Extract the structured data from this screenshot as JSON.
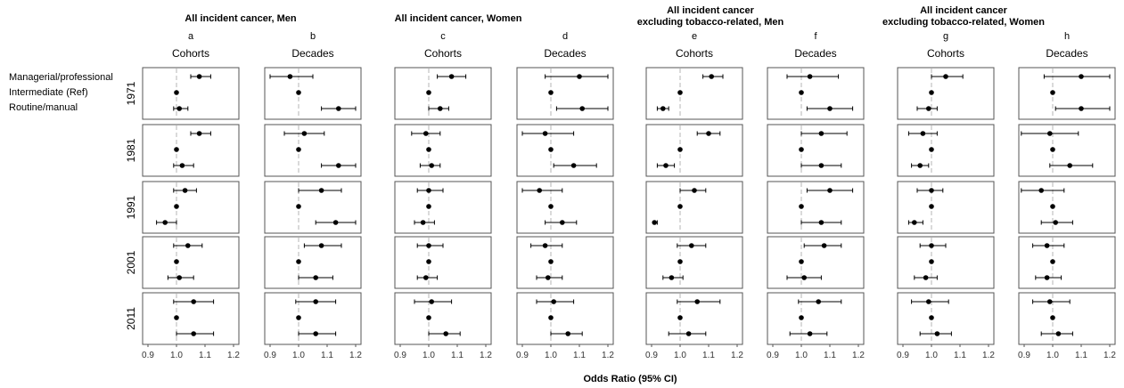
{
  "chart_data": {
    "type": "forest",
    "xlabel": "Odds Ratio (95% CI)",
    "xlim": [
      0.9,
      1.2
    ],
    "xticks": [
      "0.9",
      "1.0",
      "1.1",
      "1.2"
    ],
    "reference_line": 1.0,
    "rows": [
      "1971",
      "1981",
      "1991",
      "2001",
      "2011"
    ],
    "categories": [
      "Managerial/professional",
      "Intermediate (Ref)",
      "Routine/manual"
    ],
    "groups": [
      {
        "title_lines": [
          "All incident cancer, Men"
        ]
      },
      {
        "title_lines": [
          "All incident cancer, Women"
        ]
      },
      {
        "title_lines": [
          "All incident cancer",
          "excluding tobacco-related, Men"
        ]
      },
      {
        "title_lines": [
          "All incident cancer",
          "excluding tobacco-related, Women"
        ]
      }
    ],
    "panels": [
      {
        "letter": "a",
        "subtitle": "Cohorts",
        "data": [
          [
            [
              1.08,
              1.05,
              1.12
            ],
            [
              1.0,
              1.0,
              1.0
            ],
            [
              1.01,
              0.99,
              1.04
            ]
          ],
          [
            [
              1.08,
              1.05,
              1.12
            ],
            [
              1.0,
              1.0,
              1.0
            ],
            [
              1.02,
              0.99,
              1.06
            ]
          ],
          [
            [
              1.03,
              0.99,
              1.07
            ],
            [
              1.0,
              1.0,
              1.0
            ],
            [
              0.96,
              0.93,
              1.0
            ]
          ],
          [
            [
              1.04,
              0.99,
              1.09
            ],
            [
              1.0,
              1.0,
              1.0
            ],
            [
              1.01,
              0.97,
              1.06
            ]
          ],
          [
            [
              1.06,
              0.99,
              1.13
            ],
            [
              1.0,
              1.0,
              1.0
            ],
            [
              1.06,
              1.0,
              1.13
            ]
          ]
        ]
      },
      {
        "letter": "b",
        "subtitle": "Decades",
        "data": [
          [
            [
              0.97,
              0.9,
              1.05
            ],
            [
              1.0,
              1.0,
              1.0
            ],
            [
              1.14,
              1.08,
              1.2
            ]
          ],
          [
            [
              1.02,
              0.95,
              1.09
            ],
            [
              1.0,
              1.0,
              1.0
            ],
            [
              1.14,
              1.08,
              1.2
            ]
          ],
          [
            [
              1.08,
              1.0,
              1.15
            ],
            [
              1.0,
              1.0,
              1.0
            ],
            [
              1.13,
              1.06,
              1.2
            ]
          ],
          [
            [
              1.08,
              1.02,
              1.15
            ],
            [
              1.0,
              1.0,
              1.0
            ],
            [
              1.06,
              1.0,
              1.12
            ]
          ],
          [
            [
              1.06,
              0.99,
              1.13
            ],
            [
              1.0,
              1.0,
              1.0
            ],
            [
              1.06,
              1.0,
              1.13
            ]
          ]
        ]
      },
      {
        "letter": "c",
        "subtitle": "Cohorts",
        "data": [
          [
            [
              1.08,
              1.03,
              1.13
            ],
            [
              1.0,
              1.0,
              1.0
            ],
            [
              1.04,
              1.0,
              1.07
            ]
          ],
          [
            [
              0.99,
              0.94,
              1.04
            ],
            [
              1.0,
              1.0,
              1.0
            ],
            [
              1.01,
              0.97,
              1.04
            ]
          ],
          [
            [
              1.0,
              0.96,
              1.05
            ],
            [
              1.0,
              1.0,
              1.0
            ],
            [
              0.98,
              0.95,
              1.02
            ]
          ],
          [
            [
              1.0,
              0.96,
              1.05
            ],
            [
              1.0,
              1.0,
              1.0
            ],
            [
              0.99,
              0.96,
              1.03
            ]
          ],
          [
            [
              1.01,
              0.95,
              1.08
            ],
            [
              1.0,
              1.0,
              1.0
            ],
            [
              1.06,
              1.0,
              1.11
            ]
          ]
        ]
      },
      {
        "letter": "d",
        "subtitle": "Decades",
        "data": [
          [
            [
              1.1,
              0.98,
              1.2
            ],
            [
              1.0,
              1.0,
              1.0
            ],
            [
              1.11,
              1.02,
              1.2
            ]
          ],
          [
            [
              0.98,
              0.9,
              1.08
            ],
            [
              1.0,
              1.0,
              1.0
            ],
            [
              1.08,
              1.01,
              1.16
            ]
          ],
          [
            [
              0.96,
              0.9,
              1.04
            ],
            [
              1.0,
              1.0,
              1.0
            ],
            [
              1.04,
              0.98,
              1.09
            ]
          ],
          [
            [
              0.98,
              0.93,
              1.04
            ],
            [
              1.0,
              1.0,
              1.0
            ],
            [
              0.99,
              0.95,
              1.04
            ]
          ],
          [
            [
              1.01,
              0.95,
              1.08
            ],
            [
              1.0,
              1.0,
              1.0
            ],
            [
              1.06,
              1.0,
              1.11
            ]
          ]
        ]
      },
      {
        "letter": "e",
        "subtitle": "Cohorts",
        "data": [
          [
            [
              1.11,
              1.08,
              1.15
            ],
            [
              1.0,
              1.0,
              1.0
            ],
            [
              0.94,
              0.92,
              0.96
            ]
          ],
          [
            [
              1.1,
              1.06,
              1.14
            ],
            [
              1.0,
              1.0,
              1.0
            ],
            [
              0.95,
              0.92,
              0.98
            ]
          ],
          [
            [
              1.05,
              1.0,
              1.09
            ],
            [
              1.0,
              1.0,
              1.0
            ],
            [
              0.91,
              0.91,
              0.92
            ]
          ],
          [
            [
              1.04,
              0.99,
              1.09
            ],
            [
              1.0,
              1.0,
              1.0
            ],
            [
              0.97,
              0.94,
              1.01
            ]
          ],
          [
            [
              1.06,
              0.99,
              1.14
            ],
            [
              1.0,
              1.0,
              1.0
            ],
            [
              1.03,
              0.96,
              1.09
            ]
          ]
        ]
      },
      {
        "letter": "f",
        "subtitle": "Decades",
        "data": [
          [
            [
              1.03,
              0.95,
              1.13
            ],
            [
              1.0,
              1.0,
              1.0
            ],
            [
              1.1,
              1.02,
              1.18
            ]
          ],
          [
            [
              1.07,
              1.0,
              1.16
            ],
            [
              1.0,
              1.0,
              1.0
            ],
            [
              1.07,
              1.0,
              1.14
            ]
          ],
          [
            [
              1.1,
              1.02,
              1.18
            ],
            [
              1.0,
              1.0,
              1.0
            ],
            [
              1.07,
              1.0,
              1.14
            ]
          ],
          [
            [
              1.08,
              1.01,
              1.14
            ],
            [
              1.0,
              1.0,
              1.0
            ],
            [
              1.01,
              0.95,
              1.07
            ]
          ],
          [
            [
              1.06,
              0.99,
              1.14
            ],
            [
              1.0,
              1.0,
              1.0
            ],
            [
              1.03,
              0.96,
              1.09
            ]
          ]
        ]
      },
      {
        "letter": "g",
        "subtitle": "Cohorts",
        "data": [
          [
            [
              1.05,
              1.0,
              1.11
            ],
            [
              1.0,
              1.0,
              1.0
            ],
            [
              0.99,
              0.95,
              1.02
            ]
          ],
          [
            [
              0.97,
              0.92,
              1.02
            ],
            [
              1.0,
              1.0,
              1.0
            ],
            [
              0.96,
              0.93,
              0.99
            ]
          ],
          [
            [
              1.0,
              0.95,
              1.04
            ],
            [
              1.0,
              1.0,
              1.0
            ],
            [
              0.94,
              0.92,
              0.97
            ]
          ],
          [
            [
              1.0,
              0.96,
              1.05
            ],
            [
              1.0,
              1.0,
              1.0
            ],
            [
              0.98,
              0.94,
              1.02
            ]
          ],
          [
            [
              0.99,
              0.93,
              1.06
            ],
            [
              1.0,
              1.0,
              1.0
            ],
            [
              1.02,
              0.96,
              1.07
            ]
          ]
        ]
      },
      {
        "letter": "h",
        "subtitle": "Decades",
        "data": [
          [
            [
              1.1,
              0.97,
              1.2
            ],
            [
              1.0,
              1.0,
              1.0
            ],
            [
              1.1,
              1.01,
              1.2
            ]
          ],
          [
            [
              0.99,
              0.89,
              1.09
            ],
            [
              1.0,
              1.0,
              1.0
            ],
            [
              1.06,
              0.99,
              1.14
            ]
          ],
          [
            [
              0.96,
              0.89,
              1.04
            ],
            [
              1.0,
              1.0,
              1.0
            ],
            [
              1.01,
              0.96,
              1.07
            ]
          ],
          [
            [
              0.98,
              0.93,
              1.04
            ],
            [
              1.0,
              1.0,
              1.0
            ],
            [
              0.98,
              0.94,
              1.03
            ]
          ],
          [
            [
              0.99,
              0.93,
              1.06
            ],
            [
              1.0,
              1.0,
              1.0
            ],
            [
              1.02,
              0.96,
              1.07
            ]
          ]
        ]
      }
    ]
  }
}
